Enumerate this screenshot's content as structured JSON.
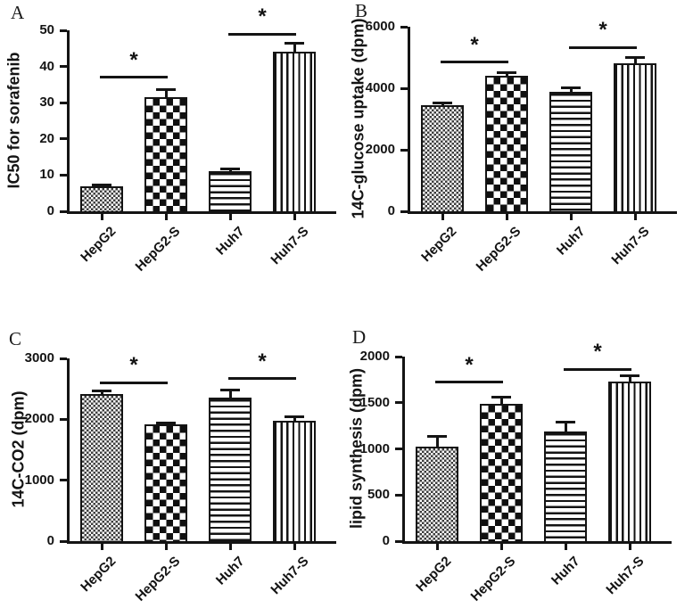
{
  "figure": {
    "background": "#ffffff",
    "ink_color": "#141414",
    "description_labels": [
      "A",
      "B",
      "C",
      "D"
    ]
  },
  "chart_data": [
    {
      "panel": "A",
      "type": "bar",
      "title": "",
      "xlabel": "",
      "ylabel": "IC50 for sorafenib",
      "ylim": [
        0,
        50
      ],
      "ytick_step": 10,
      "ytick_labels": [
        "0",
        "10",
        "20",
        "30",
        "40",
        "50"
      ],
      "grid": false,
      "legend": false,
      "categories": [
        "HepG2",
        "HepG2-S",
        "Huh7",
        "Huh7-S"
      ],
      "values": [
        6.8,
        31.5,
        11,
        44
      ],
      "errors_plus": [
        0.4,
        2,
        0.6,
        2.5
      ],
      "bar_patterns": [
        "fine-checker",
        "coarse-checker",
        "horizontal-stripes",
        "vertical-stripes"
      ],
      "significance": [
        {
          "from": 0,
          "to": 1,
          "line_y": 37,
          "label": "*"
        },
        {
          "from": 2,
          "to": 3,
          "line_y": 49,
          "label": "*"
        }
      ]
    },
    {
      "panel": "B",
      "type": "bar",
      "title": "",
      "xlabel": "",
      "ylabel": "14C-glucose uptake (dpm)",
      "ylim": [
        0,
        6000
      ],
      "ytick_step": 2000,
      "ytick_labels": [
        "0",
        "2000",
        "4000",
        "6000"
      ],
      "grid": false,
      "legend": false,
      "categories": [
        "HepG2",
        "HepG2-S",
        "Huh7",
        "Huh7-S"
      ],
      "values": [
        3450,
        4400,
        3880,
        4810
      ],
      "errors_plus": [
        80,
        100,
        130,
        180
      ],
      "bar_patterns": [
        "fine-checker",
        "coarse-checker",
        "horizontal-stripes",
        "vertical-stripes"
      ],
      "significance": [
        {
          "from": 0,
          "to": 1,
          "line_y": 4850,
          "label": "*"
        },
        {
          "from": 2,
          "to": 3,
          "line_y": 5330,
          "label": "*"
        }
      ]
    },
    {
      "panel": "C",
      "type": "bar",
      "title": "",
      "xlabel": "",
      "ylabel": "14C-CO2 (dpm)",
      "ylim": [
        0,
        3000
      ],
      "ytick_step": 1000,
      "ytick_labels": [
        "0",
        "1000",
        "2000",
        "3000"
      ],
      "grid": false,
      "legend": false,
      "categories": [
        "HepG2",
        "HepG2-S",
        "Huh7",
        "Huh7-S"
      ],
      "values": [
        2420,
        1910,
        2360,
        1975
      ],
      "errors_plus": [
        50,
        30,
        125,
        70
      ],
      "bar_patterns": [
        "fine-checker",
        "coarse-checker",
        "horizontal-stripes",
        "vertical-stripes"
      ],
      "significance": [
        {
          "from": 0,
          "to": 1,
          "line_y": 2600,
          "label": "*"
        },
        {
          "from": 2,
          "to": 3,
          "line_y": 2670,
          "label": "*"
        }
      ]
    },
    {
      "panel": "D",
      "type": "bar",
      "title": "",
      "xlabel": "",
      "ylabel": "lipid synthesis (dpm)",
      "ylim": [
        0,
        2000
      ],
      "ytick_step": 500,
      "ytick_labels": [
        "0",
        "500",
        "1000",
        "1500",
        "2000"
      ],
      "grid": false,
      "legend": false,
      "categories": [
        "HepG2",
        "HepG2-S",
        "Huh7",
        "Huh7-S"
      ],
      "values": [
        1020,
        1490,
        1185,
        1725
      ],
      "errors_plus": [
        115,
        75,
        105,
        70
      ],
      "bar_patterns": [
        "fine-checker",
        "coarse-checker",
        "horizontal-stripes",
        "vertical-stripes"
      ],
      "significance": [
        {
          "from": 0,
          "to": 1,
          "line_y": 1720,
          "label": "*"
        },
        {
          "from": 2,
          "to": 3,
          "line_y": 1860,
          "label": "*"
        }
      ]
    }
  ]
}
